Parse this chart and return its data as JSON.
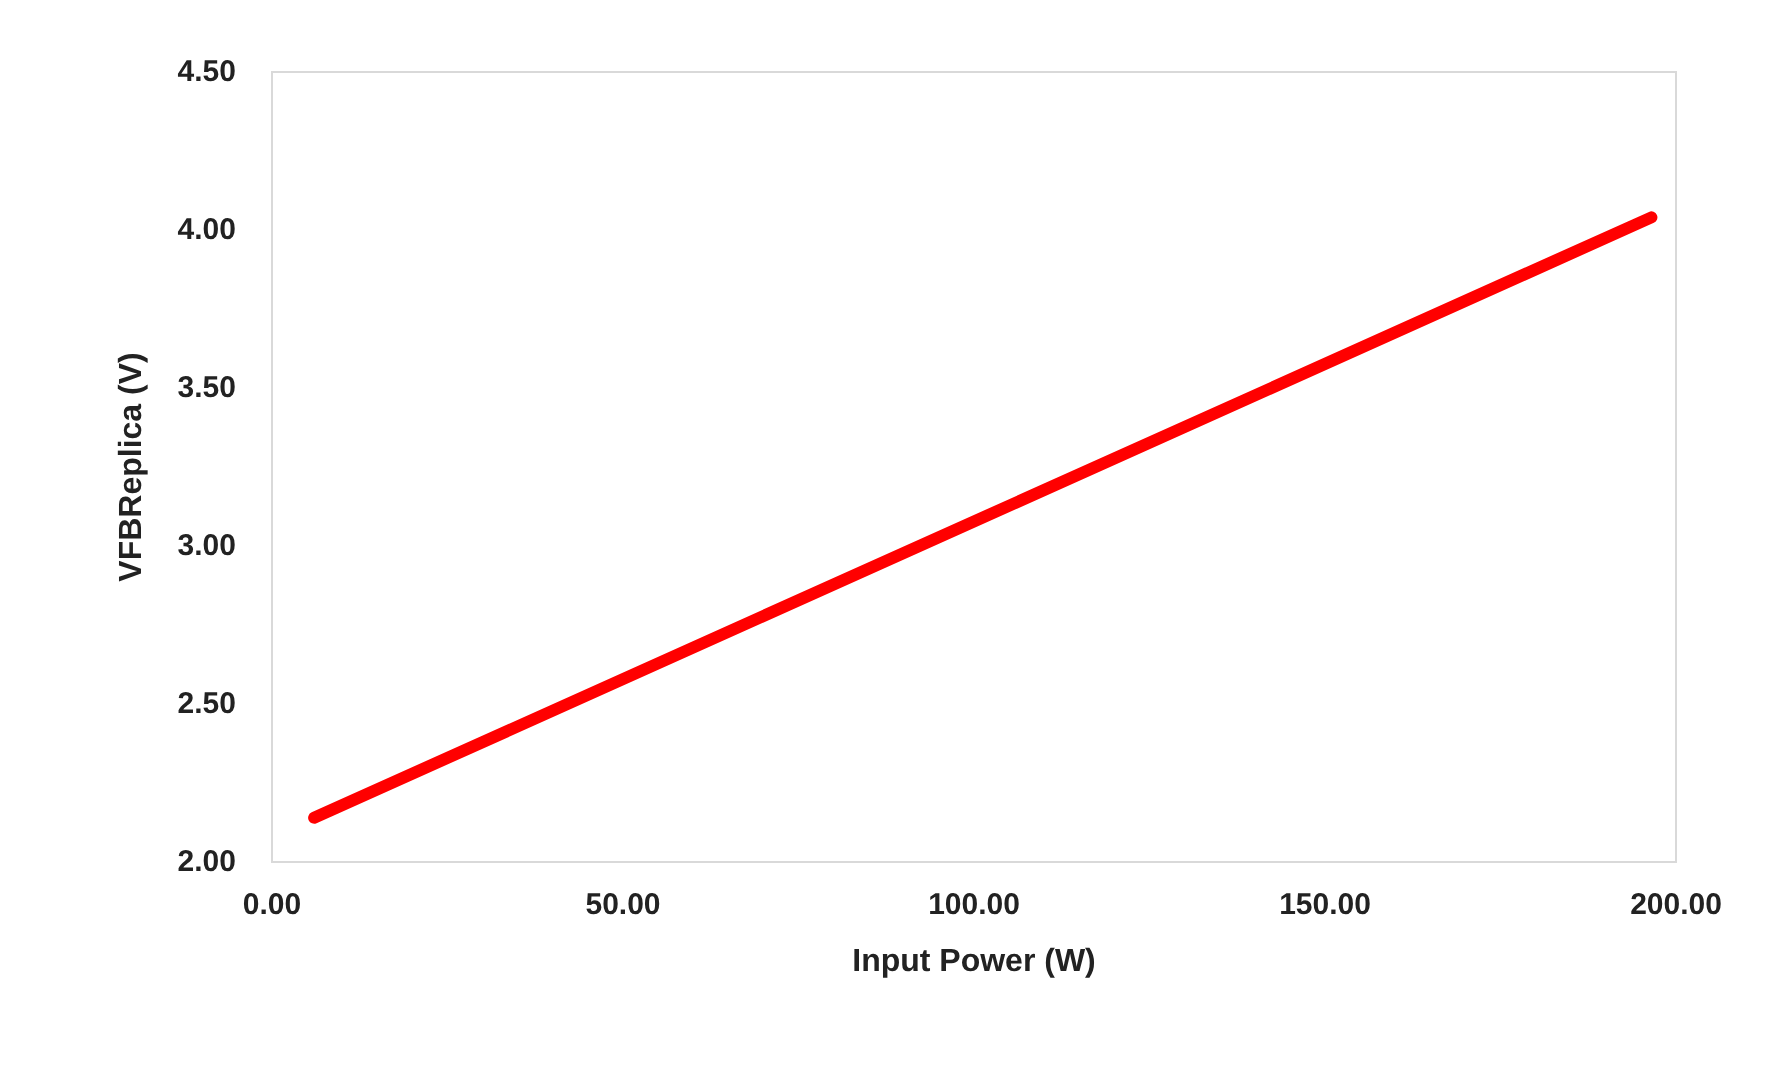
{
  "chart_data": {
    "type": "line",
    "xlabel": "Input Power (W)",
    "ylabel": "VFBReplica (V)",
    "x": [
      6,
      196.5
    ],
    "series": [
      {
        "color": "#ff0000",
        "values": [
          2.14,
          4.04
        ]
      }
    ],
    "xlim": [
      0,
      200
    ],
    "ylim": [
      2,
      4.5
    ],
    "xticks": [
      {
        "value": 0,
        "label": "0.00"
      },
      {
        "value": 50,
        "label": "50.00"
      },
      {
        "value": 100,
        "label": "100.00"
      },
      {
        "value": 150,
        "label": "150.00"
      },
      {
        "value": 200,
        "label": "200.00"
      }
    ],
    "yticks": [
      {
        "value": 2,
        "label": "2.00"
      },
      {
        "value": 2.5,
        "label": "2.50"
      },
      {
        "value": 3,
        "label": "3.00"
      },
      {
        "value": 3.5,
        "label": "3.50"
      },
      {
        "value": 4,
        "label": "4.00"
      },
      {
        "value": 4.5,
        "label": "4.50"
      }
    ],
    "grid": false,
    "marker": "none",
    "line_style": "solid"
  }
}
